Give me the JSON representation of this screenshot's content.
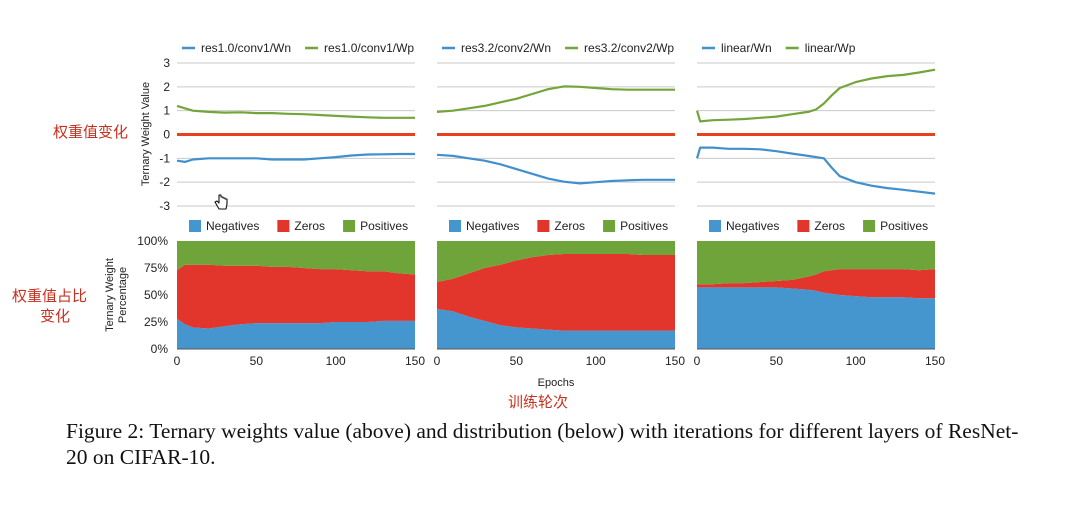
{
  "colors": {
    "wn": "#4190cd",
    "wp": "#74a53a",
    "zero_line": "#e8401c",
    "negatives": "#4596cf",
    "zeros": "#e2352b",
    "positives": "#6fa43a",
    "grid": "#c9c9c9",
    "annotation": "#c8301f"
  },
  "icons": {
    "cursor": "hand-cursor-icon"
  },
  "caption": "Figure 2: Ternary weights value (above) and distribution (below) with iterations for different layers of ResNet-20 on CIFAR-10.",
  "annotations": {
    "top_left": "权重值变化",
    "bottom_left_line1": "权重值占比",
    "bottom_left_line2": "变化",
    "bottom_center": "训练轮次"
  },
  "chart_data": [
    {
      "type": "line",
      "ylabel": "Ternary Weight Value",
      "ylim": [
        -3,
        3
      ],
      "yticks": [
        "3",
        "2",
        "1",
        "0",
        "-1",
        "-2",
        "-3"
      ],
      "grid": true,
      "panels": [
        {
          "legend": [
            "res1.0/conv1/Wn",
            "res1.0/conv1/Wp"
          ],
          "x": [
            0,
            5,
            10,
            20,
            30,
            40,
            50,
            60,
            70,
            80,
            90,
            100,
            110,
            120,
            130,
            140,
            150
          ],
          "series": [
            {
              "name": "res1.0/conv1/Wn",
              "values": [
                -1.1,
                -1.15,
                -1.05,
                -1.0,
                -1.0,
                -1.0,
                -1.0,
                -1.05,
                -1.05,
                -1.05,
                -1.0,
                -0.95,
                -0.88,
                -0.84,
                -0.83,
                -0.82,
                -0.82
              ]
            },
            {
              "name": "res1.0/conv1/Wp",
              "values": [
                1.2,
                1.1,
                1.0,
                0.95,
                0.92,
                0.93,
                0.9,
                0.9,
                0.87,
                0.85,
                0.82,
                0.78,
                0.75,
                0.72,
                0.7,
                0.7,
                0.7
              ]
            },
            {
              "name": "zero",
              "values": [
                0,
                0,
                0,
                0,
                0,
                0,
                0,
                0,
                0,
                0,
                0,
                0,
                0,
                0,
                0,
                0,
                0
              ]
            }
          ]
        },
        {
          "legend": [
            "res3.2/conv2/Wn",
            "res3.2/conv2/Wp"
          ],
          "x": [
            0,
            10,
            20,
            30,
            40,
            50,
            60,
            70,
            80,
            90,
            100,
            110,
            120,
            130,
            140,
            150
          ],
          "series": [
            {
              "name": "res3.2/conv2/Wn",
              "values": [
                -0.85,
                -0.9,
                -1.0,
                -1.1,
                -1.25,
                -1.45,
                -1.65,
                -1.85,
                -1.98,
                -2.05,
                -2.0,
                -1.95,
                -1.92,
                -1.9,
                -1.9,
                -1.9
              ]
            },
            {
              "name": "res3.2/conv2/Wp",
              "values": [
                0.95,
                1.0,
                1.1,
                1.2,
                1.35,
                1.5,
                1.7,
                1.9,
                2.02,
                2.0,
                1.95,
                1.9,
                1.88,
                1.88,
                1.88,
                1.88
              ]
            },
            {
              "name": "zero",
              "values": [
                0,
                0,
                0,
                0,
                0,
                0,
                0,
                0,
                0,
                0,
                0,
                0,
                0,
                0,
                0,
                0
              ]
            }
          ]
        },
        {
          "legend": [
            "linear/Wn",
            "linear/Wp"
          ],
          "x": [
            0,
            2,
            10,
            20,
            30,
            40,
            50,
            60,
            70,
            75,
            80,
            85,
            90,
            100,
            110,
            120,
            130,
            140,
            150
          ],
          "series": [
            {
              "name": "linear/Wn",
              "values": [
                -1.0,
                -0.55,
                -0.55,
                -0.6,
                -0.6,
                -0.62,
                -0.7,
                -0.8,
                -0.9,
                -0.95,
                -1.0,
                -1.4,
                -1.75,
                -2.0,
                -2.15,
                -2.25,
                -2.32,
                -2.4,
                -2.48
              ]
            },
            {
              "name": "linear/Wp",
              "values": [
                1.0,
                0.55,
                0.6,
                0.62,
                0.65,
                0.7,
                0.75,
                0.85,
                0.95,
                1.05,
                1.3,
                1.65,
                1.95,
                2.2,
                2.35,
                2.45,
                2.5,
                2.6,
                2.72
              ]
            },
            {
              "name": "zero",
              "values": [
                0,
                0,
                0,
                0,
                0,
                0,
                0,
                0,
                0,
                0,
                0,
                0,
                0,
                0,
                0,
                0,
                0,
                0,
                0
              ]
            }
          ]
        }
      ]
    },
    {
      "type": "area",
      "stacked": true,
      "ylabel": "Ternary Weight Percentage",
      "xlabel": "Epochs",
      "ylim": [
        0,
        100
      ],
      "yticks": [
        "100%",
        "75%",
        "50%",
        "25%",
        "0%"
      ],
      "xticks": [
        "0",
        "50",
        "100",
        "150"
      ],
      "legend": [
        "Negatives",
        "Zeros",
        "Positives"
      ],
      "panels": [
        {
          "x": [
            0,
            5,
            10,
            20,
            30,
            40,
            50,
            60,
            70,
            80,
            90,
            100,
            110,
            120,
            130,
            140,
            150
          ],
          "series": [
            {
              "name": "Negatives",
              "values": [
                28,
                23,
                20,
                19,
                21,
                23,
                24,
                24,
                24,
                24,
                24,
                25,
                25,
                25,
                26,
                26,
                26
              ]
            },
            {
              "name": "Zeros",
              "values": [
                45,
                55,
                58,
                59,
                56,
                54,
                53,
                52,
                52,
                51,
                50,
                49,
                48,
                47,
                46,
                44,
                43
              ]
            },
            {
              "name": "Positives",
              "values": [
                27,
                22,
                22,
                22,
                23,
                23,
                23,
                24,
                24,
                25,
                26,
                26,
                27,
                28,
                28,
                30,
                31
              ]
            }
          ]
        },
        {
          "x": [
            0,
            10,
            20,
            30,
            40,
            50,
            60,
            70,
            80,
            90,
            100,
            110,
            120,
            130,
            140,
            150
          ],
          "series": [
            {
              "name": "Negatives",
              "values": [
                37,
                35,
                30,
                26,
                22,
                20,
                19,
                18,
                17,
                17,
                17,
                17,
                17,
                17,
                17,
                17
              ]
            },
            {
              "name": "Zeros",
              "values": [
                25,
                30,
                40,
                49,
                56,
                62,
                66,
                69,
                71,
                71,
                71,
                71,
                71,
                70,
                70,
                70
              ]
            },
            {
              "name": "Positives",
              "values": [
                38,
                35,
                30,
                25,
                22,
                18,
                15,
                13,
                12,
                12,
                12,
                12,
                12,
                13,
                13,
                13
              ]
            }
          ]
        },
        {
          "x": [
            0,
            10,
            20,
            30,
            40,
            50,
            60,
            70,
            75,
            80,
            85,
            90,
            100,
            110,
            120,
            130,
            140,
            150
          ],
          "series": [
            {
              "name": "Negatives",
              "values": [
                57,
                57,
                57,
                57,
                57,
                57,
                56,
                55,
                54,
                52,
                51,
                50,
                49,
                48,
                48,
                48,
                47,
                47
              ]
            },
            {
              "name": "Zeros",
              "values": [
                3,
                3,
                4,
                4,
                5,
                6,
                8,
                12,
                15,
                20,
                22,
                24,
                25,
                26,
                26,
                26,
                26,
                27
              ]
            },
            {
              "name": "Positives",
              "values": [
                40,
                40,
                39,
                39,
                38,
                37,
                36,
                33,
                31,
                28,
                27,
                26,
                26,
                26,
                26,
                26,
                27,
                26
              ]
            }
          ]
        }
      ]
    }
  ]
}
